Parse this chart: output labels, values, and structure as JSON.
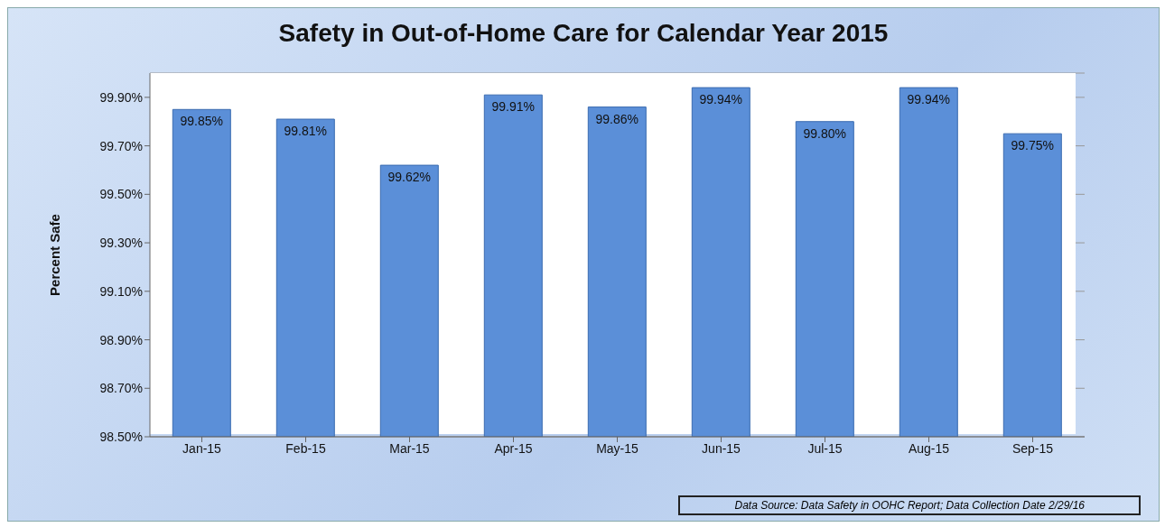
{
  "chart_data": {
    "type": "bar",
    "title": "Safety in Out-of-Home Care for Calendar Year 2015",
    "ylabel": "Percent Safe",
    "categories": [
      "Jan-15",
      "Feb-15",
      "Mar-15",
      "Apr-15",
      "May-15",
      "Jun-15",
      "Jul-15",
      "Aug-15",
      "Sep-15"
    ],
    "values": [
      99.85,
      99.81,
      99.62,
      99.91,
      99.86,
      99.94,
      99.8,
      99.94,
      99.75
    ],
    "value_labels": [
      "99.85%",
      "99.81%",
      "99.62%",
      "99.91%",
      "99.86%",
      "99.94%",
      "99.80%",
      "99.94%",
      "99.75%"
    ],
    "color": "#5b8fd8",
    "ylim": [
      98.5,
      100
    ],
    "yticks": [
      {
        "value": 98.5,
        "label": "98.50%"
      },
      {
        "value": 98.7,
        "label": "98.70%"
      },
      {
        "value": 98.9,
        "label": "98.90%"
      },
      {
        "value": 99.1,
        "label": "99.10%"
      },
      {
        "value": 99.3,
        "label": "99.30%"
      },
      {
        "value": 99.5,
        "label": "99.50%"
      },
      {
        "value": 99.7,
        "label": "99.70%"
      },
      {
        "value": 99.9,
        "label": "99.90%"
      }
    ],
    "grid": "y",
    "annotations": [
      "Data Source: Data Safety in OOHC Report; Data Collection Date 2/29/16"
    ]
  }
}
